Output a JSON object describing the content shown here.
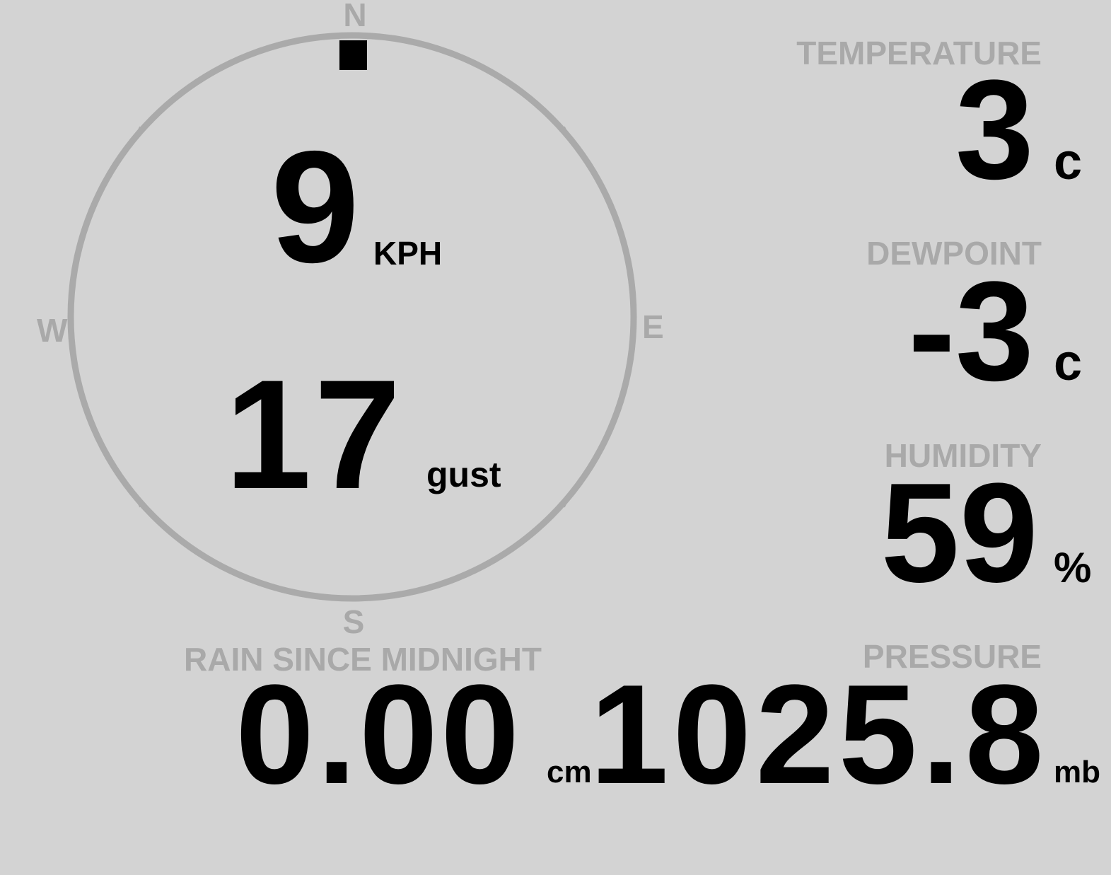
{
  "colors": {
    "background": "#d3d3d3",
    "label": "#a9a9a9",
    "value": "#000000",
    "compass_ring": "#aaaaaa"
  },
  "compass": {
    "north": "N",
    "south": "S",
    "east": "E",
    "west": "W",
    "direction_marker_icon": "north-marker-icon",
    "wind_direction": "N"
  },
  "wind": {
    "speed": "9",
    "speed_unit": "KPH",
    "gust": "17",
    "gust_unit": "gust"
  },
  "temperature": {
    "label": "TEMPERATURE",
    "value": "3",
    "unit": "c"
  },
  "dewpoint": {
    "label": "DEWPOINT",
    "value": "-3",
    "unit": "c"
  },
  "humidity": {
    "label": "HUMIDITY",
    "value": "59",
    "unit": "%"
  },
  "rain": {
    "label": "RAIN SINCE MIDNIGHT",
    "value": "0.00",
    "unit": "cm"
  },
  "pressure": {
    "label": "PRESSURE",
    "value": "1025.8",
    "unit": "mb"
  }
}
